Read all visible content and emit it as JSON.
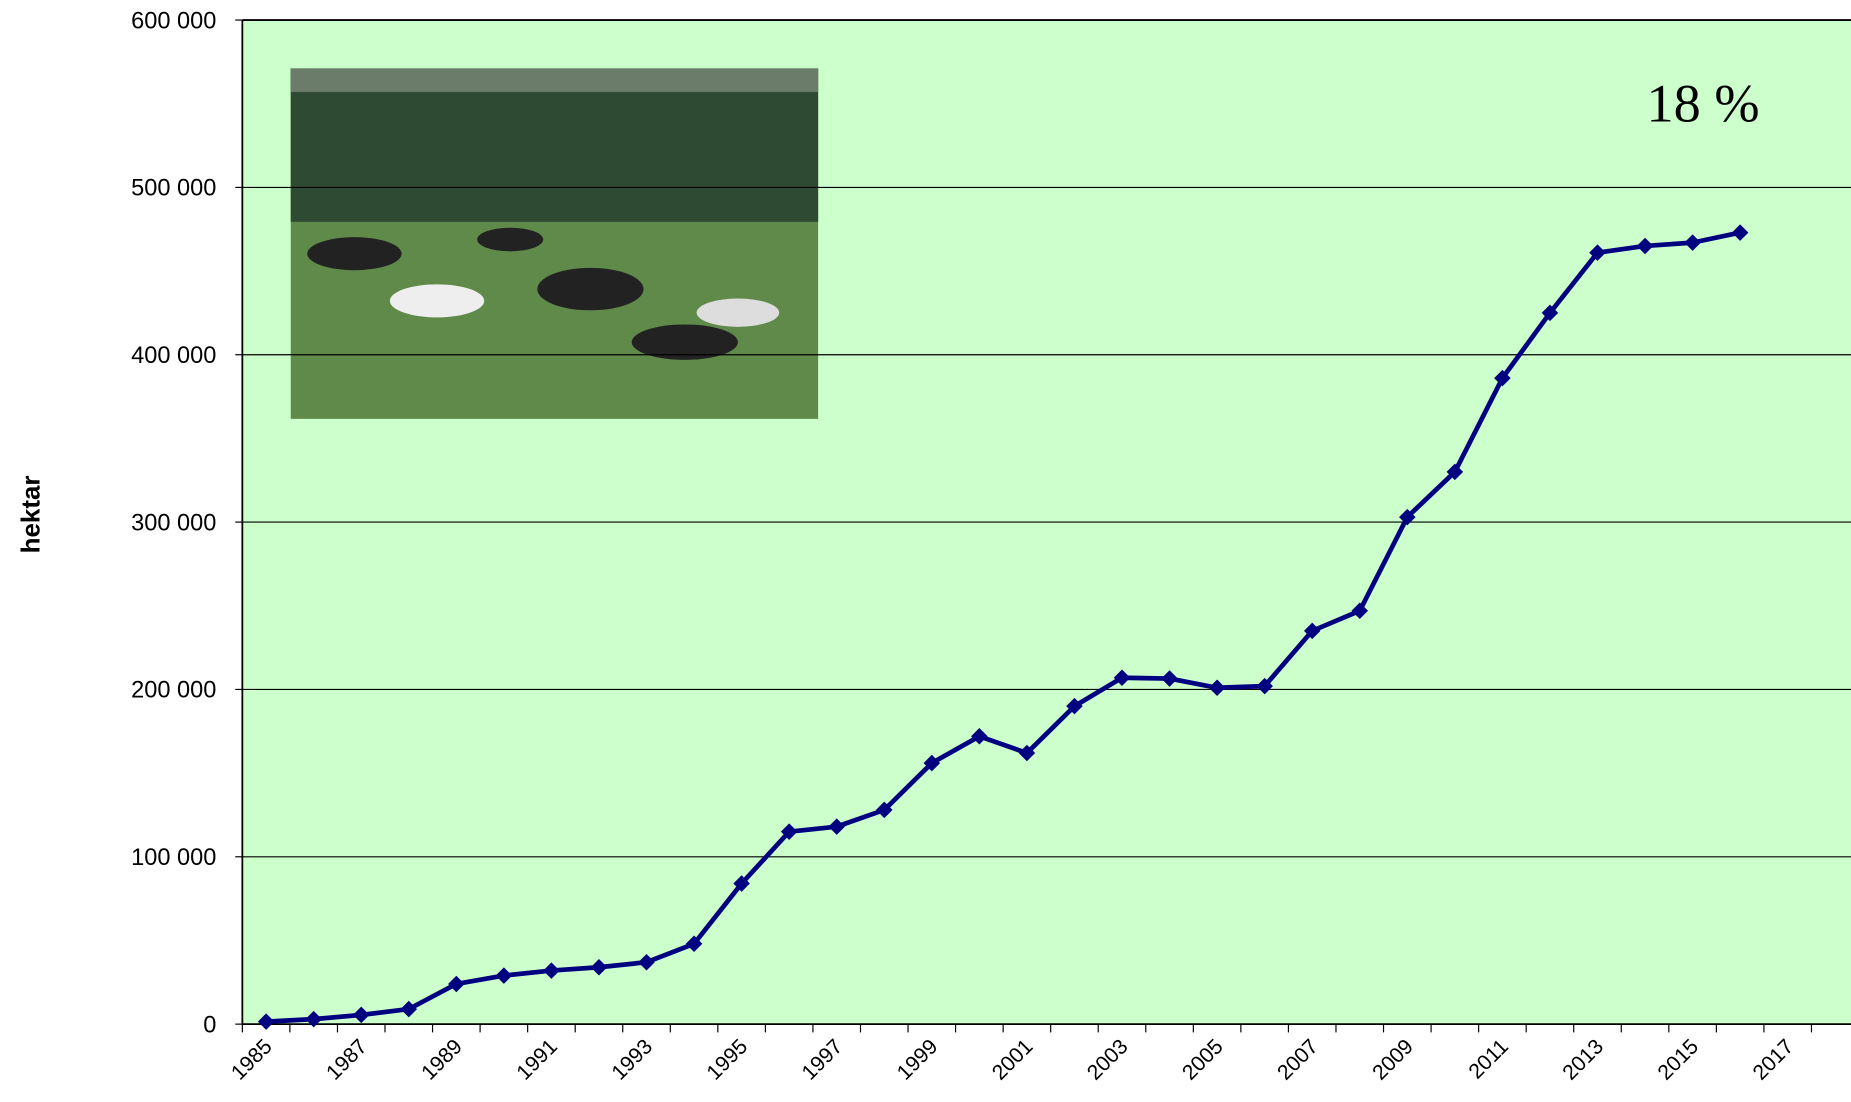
{
  "chart_data": {
    "type": "line",
    "y_label": "hektar",
    "annotation": "18 %",
    "categories": [
      "1985",
      null,
      "1987",
      null,
      "1989",
      null,
      "1991",
      null,
      "1993",
      null,
      "1995",
      null,
      "1997",
      null,
      "1999",
      null,
      "2001",
      null,
      "2003",
      null,
      "2005",
      null,
      "2007",
      null,
      "2009",
      null,
      "2011",
      null,
      "2013",
      null,
      "2015",
      null,
      "2017",
      null
    ],
    "values": [
      1500,
      3000,
      5500,
      9000,
      24000,
      29000,
      32000,
      34000,
      37000,
      48000,
      84000,
      115000,
      118000,
      128000,
      156000,
      172000,
      162000,
      190000,
      207000,
      206500,
      201000,
      202000,
      235000,
      247000,
      303000,
      330000,
      386000,
      425000,
      461000,
      465000,
      467000,
      473000,
      null,
      null
    ],
    "color": "#000080",
    "ylim": [
      0,
      600000
    ],
    "yticks": [
      {
        "value": 0,
        "label": "0"
      },
      {
        "value": 100000,
        "label": "100 000"
      },
      {
        "value": 200000,
        "label": "200 000"
      },
      {
        "value": 300000,
        "label": "300 000"
      },
      {
        "value": 400000,
        "label": "400 000"
      },
      {
        "value": 500000,
        "label": "500 000"
      },
      {
        "value": 600000,
        "label": "600 000"
      }
    ],
    "grid": true
  }
}
